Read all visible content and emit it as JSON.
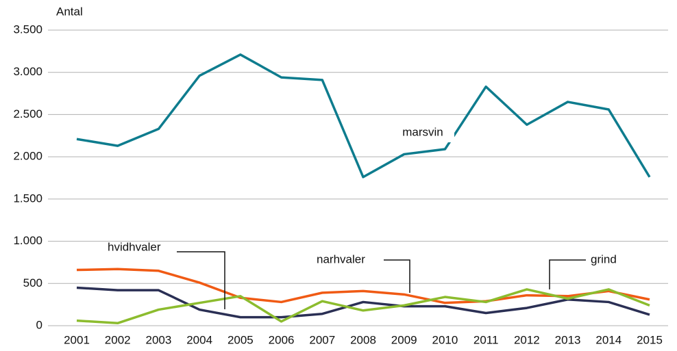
{
  "chart_data": {
    "type": "line",
    "y_label": "Antal",
    "x": [
      "2001",
      "2002",
      "2003",
      "2004",
      "2005",
      "2006",
      "2007",
      "2008",
      "2009",
      "2010",
      "2011",
      "2012",
      "2013",
      "2014",
      "2015"
    ],
    "ylim": [
      0,
      3500
    ],
    "yticks": [
      0,
      500,
      {
        "value": 1000,
        "label": "1.000"
      },
      {
        "value": 1500,
        "label": "1.500"
      },
      {
        "value": 2000,
        "label": "2.000"
      },
      {
        "value": 2500,
        "label": "2.500"
      },
      {
        "value": 3000,
        "label": "3.000"
      },
      {
        "value": 3500,
        "label": "3.500"
      }
    ],
    "grid": true,
    "series": [
      {
        "name": "marsvin",
        "color": "#0e7c8e",
        "values": [
          2210,
          2130,
          2330,
          2960,
          3210,
          2940,
          2910,
          1760,
          2030,
          2090,
          2830,
          2380,
          2650,
          2560,
          1760
        ]
      },
      {
        "name": "hvidhvaler",
        "color": "#2a2f54",
        "values": [
          450,
          420,
          420,
          190,
          100,
          100,
          140,
          280,
          230,
          230,
          150,
          210,
          310,
          280,
          130
        ]
      },
      {
        "name": "narhvaler",
        "color": "#f05a14",
        "values": [
          660,
          670,
          650,
          510,
          330,
          280,
          390,
          410,
          370,
          270,
          290,
          360,
          350,
          410,
          310
        ]
      },
      {
        "name": "grind",
        "color": "#8cbc2e",
        "values": [
          60,
          30,
          190,
          270,
          350,
          50,
          290,
          180,
          240,
          340,
          280,
          430,
          320,
          430,
          240
        ]
      }
    ]
  }
}
